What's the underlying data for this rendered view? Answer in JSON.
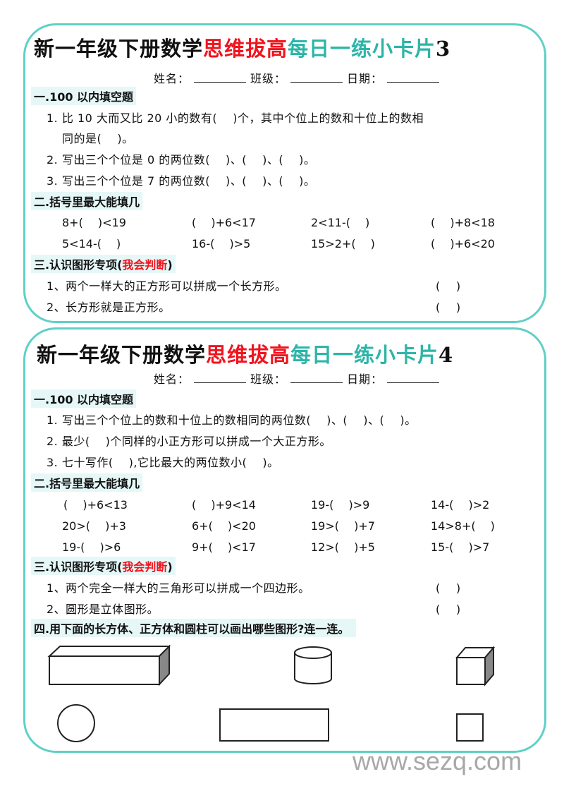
{
  "cards": [
    {
      "title": {
        "part1": "新一年级下册数学",
        "part2": "思维拔高",
        "part3": "每日一练小卡片",
        "number": "3"
      },
      "info": {
        "name": "姓名：",
        "class": "班级：",
        "date": "日期："
      },
      "s1": {
        "heading": "一.100 以内填空题",
        "items": [
          "1. 比 10 大而又比 20 小的数有(　 )个，其中个位上的数和十位上的数相",
          "同的是(　 )。",
          "2. 写出三个个位是 0 的两位数(　 )、(　 )、(　 )。",
          "3. 写出三个个位是 7 的两位数(　 )、(　 )、(　 )。"
        ]
      },
      "s2": {
        "heading": "二.括号里最大能填几",
        "rows": [
          [
            "8+(　 )<19",
            "(　 )+6<17",
            "2<11-(　 )",
            "(　 )+8<18"
          ],
          [
            "5<14-(　 )",
            "16-(　 )>5",
            "15>2+(　 )",
            "(　 )+6<20"
          ]
        ]
      },
      "s3": {
        "heading": "三.认识图形专项(",
        "heading_red": "我会判断",
        "heading_end": ")",
        "items": [
          {
            "text": "1、两个一样大的正方形可以拼成一个长方形。",
            "answer": "(　 )"
          },
          {
            "text": "2、长方形就是正方形。",
            "answer": "(　 )"
          }
        ]
      }
    },
    {
      "title": {
        "part1": "新一年级下册数学",
        "part2": "思维拔高",
        "part3": "每日一练小卡片",
        "number": "4"
      },
      "info": {
        "name": "姓名：",
        "class": "班级：",
        "date": "日期："
      },
      "s1": {
        "heading": "一.100 以内填空题",
        "items": [
          "1. 写出三个个位上的数和十位上的数相同的两位数(　 )、(　 )、(　 )。",
          "2. 最少(　 )个同样的小正方形可以拼成一个大正方形。",
          "3. 七十写作(　 ),它比最大的两位数小(　 )。"
        ]
      },
      "s2": {
        "heading": "二.括号里最大能填几",
        "rows": [
          [
            "(　 )+6<13",
            "(　 )+9<14",
            "19-(　 )>9",
            "14-(　 )>2"
          ],
          [
            "20>(　 )+3",
            "6+(　 )<20",
            "19>(　 )+7",
            "14>8+(　 )"
          ],
          [
            "19-(　 )>6",
            "9+(　 )<17",
            "12>(　 )+5",
            "15-(　 )>7"
          ]
        ]
      },
      "s3": {
        "heading": "三.认识图形专项(",
        "heading_red": "我会判断",
        "heading_end": ")",
        "items": [
          {
            "text": "1、两个完全一样大的三角形可以拼成一个四边形。",
            "answer": "(　 )"
          },
          {
            "text": "2、圆形是立体图形。",
            "answer": "(　 )"
          }
        ]
      },
      "s4": {
        "heading": "四.用下面的长方体、正方体和圆柱可以画出哪些图形?连一连。",
        "shapes": [
          "cuboid",
          "cylinder",
          "cube",
          "circle",
          "rectangle",
          "square"
        ]
      }
    }
  ],
  "watermark": "www.sezq.com",
  "colors": {
    "border": "#5fd0c6",
    "red": "#f0141e",
    "teal": "#2db5a8",
    "section_bg": "#e6f7f7"
  }
}
